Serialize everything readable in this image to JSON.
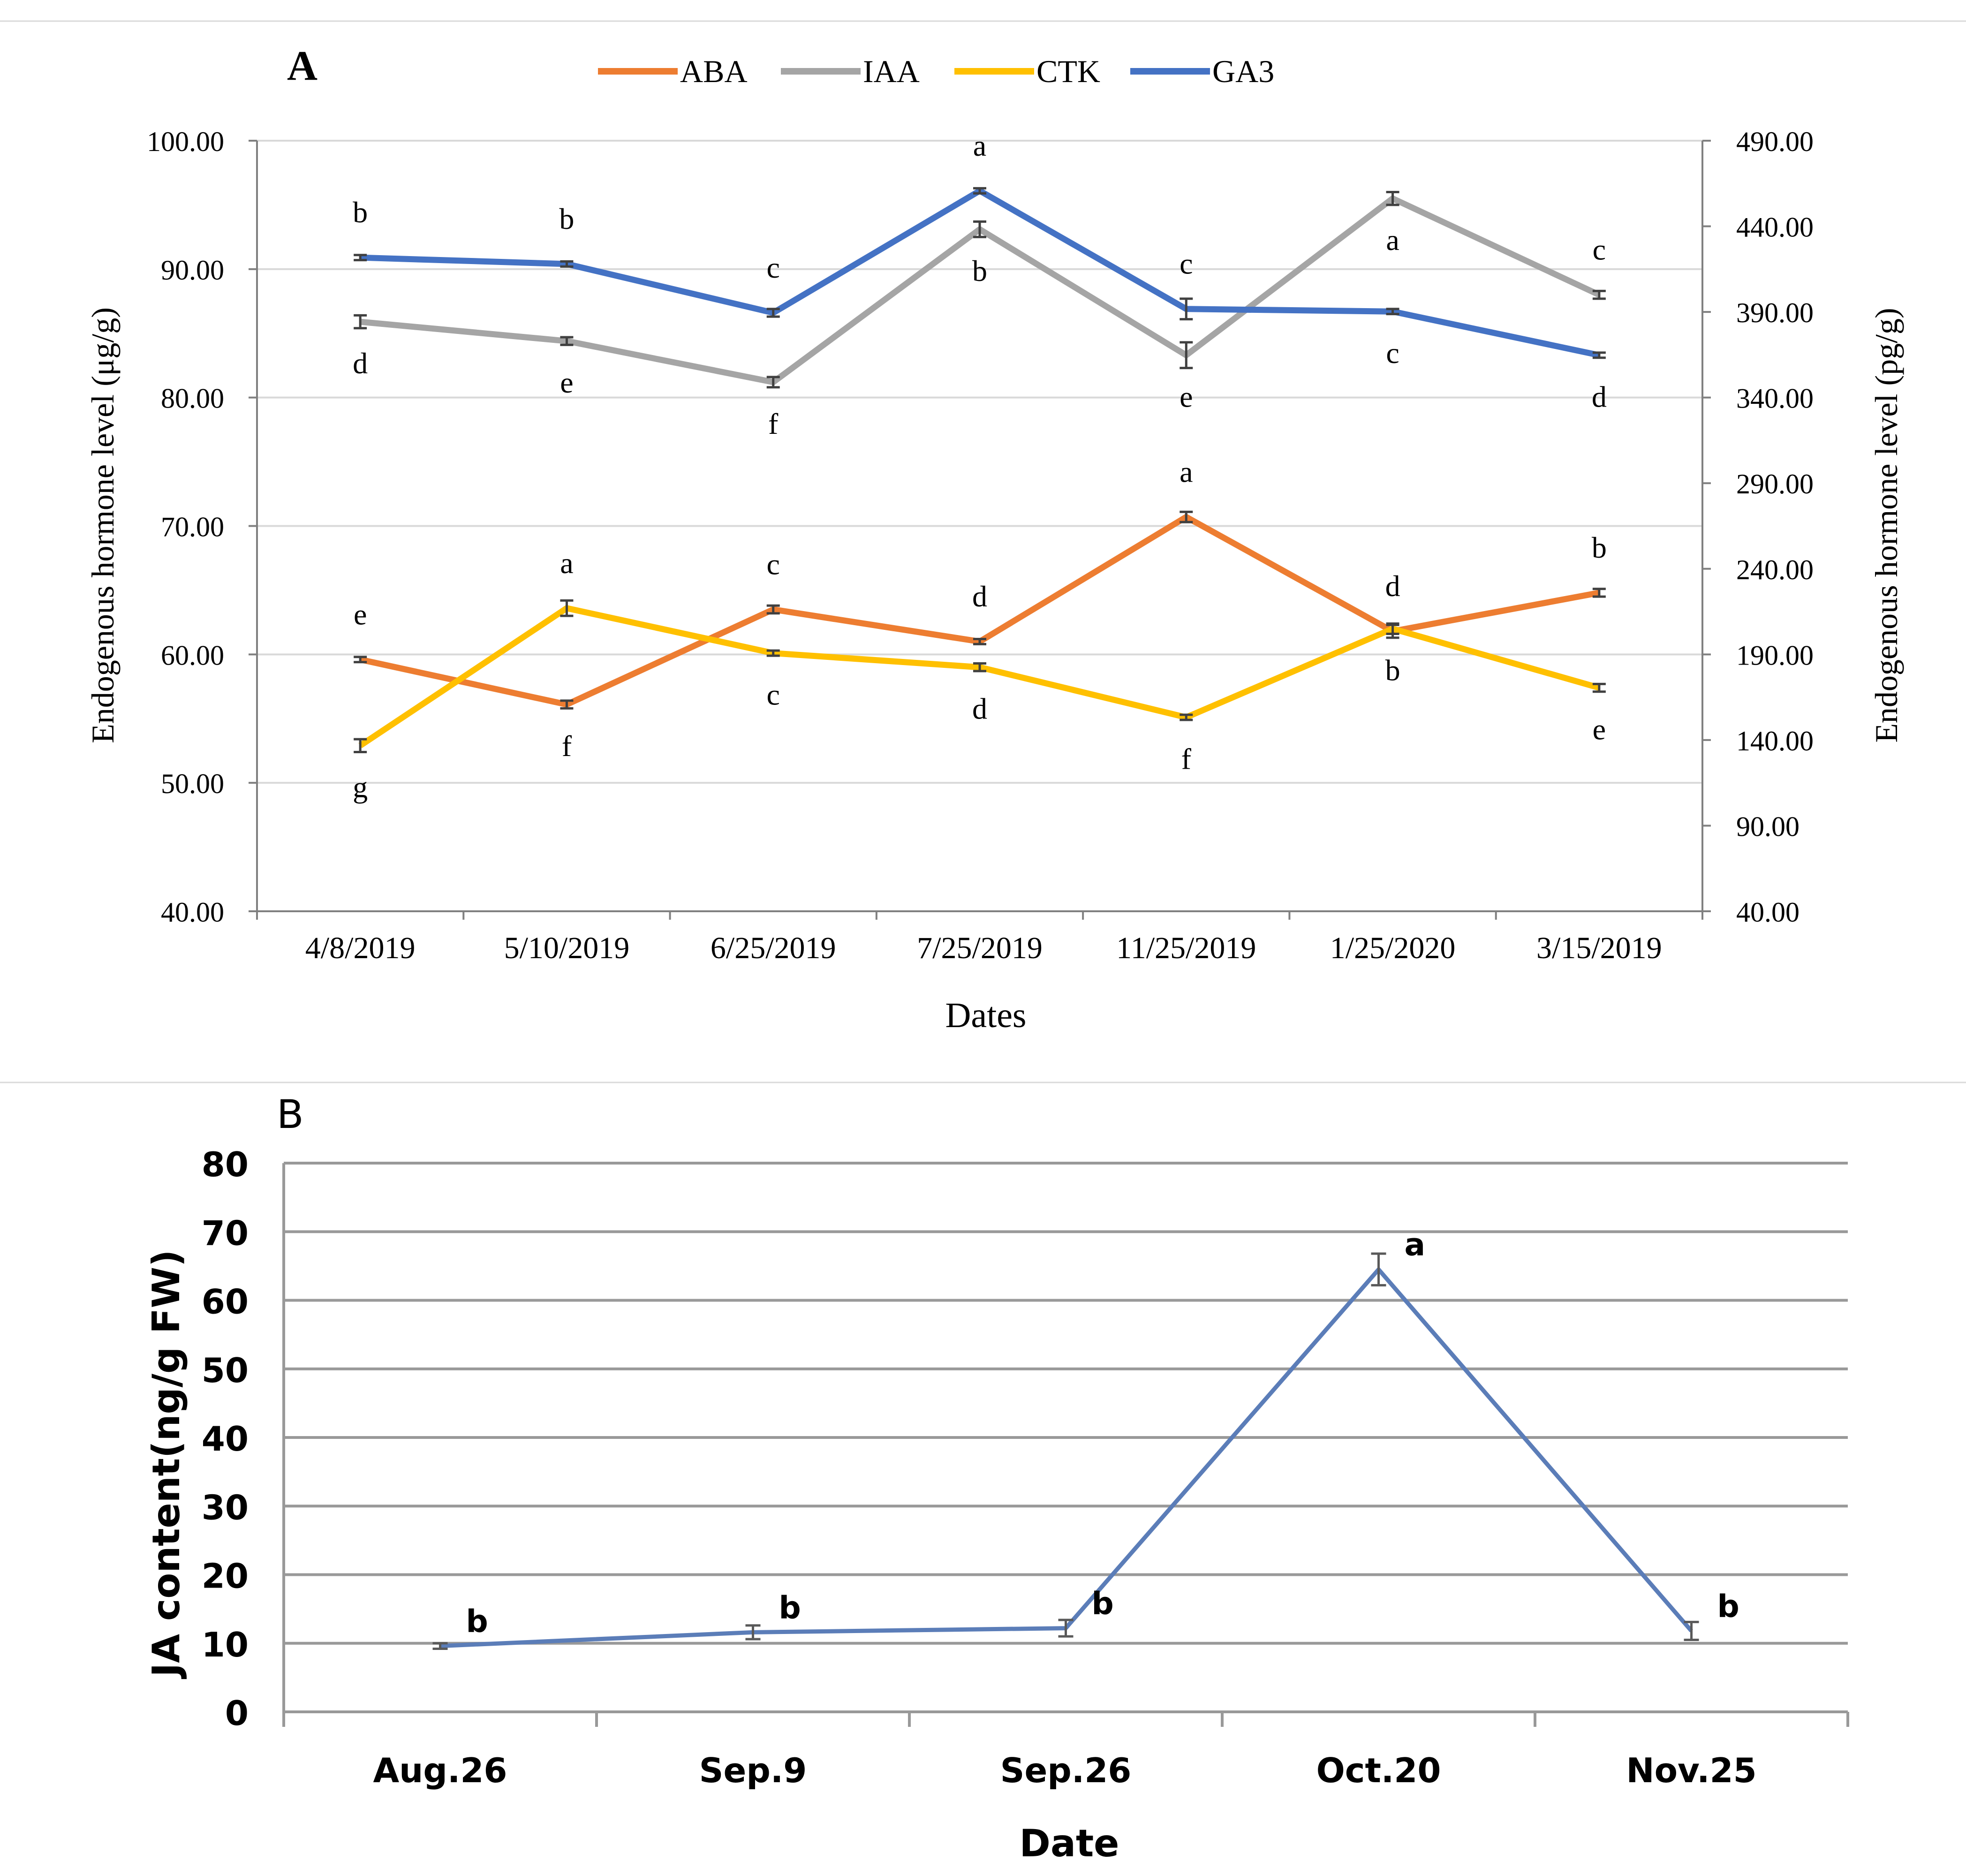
{
  "chart_data": [
    {
      "panel_label": "A",
      "type": "line",
      "xlabel": "Dates",
      "ylabel_left": "Endogenous hormone level (μg/g)",
      "ylabel_right": "Endogenous hormone level (pg/g)",
      "categories": [
        "4/8/2019",
        "5/10/2019",
        "6/25/2019",
        "7/25/2019",
        "11/25/2019",
        "1/25/2020",
        "3/15/2019"
      ],
      "ylim_left": [
        40,
        100
      ],
      "ylim_right": [
        40,
        490
      ],
      "yticks_left": [
        "40.00",
        "50.00",
        "60.00",
        "70.00",
        "80.00",
        "90.00",
        "100.00"
      ],
      "yticks_right": [
        "40.00",
        "90.00",
        "140.00",
        "190.00",
        "240.00",
        "290.00",
        "340.00",
        "390.00",
        "440.00",
        "490.00"
      ],
      "grid": true,
      "legend_position": "top",
      "series": [
        {
          "name": "ABA",
          "axis": "left",
          "color": "#ED7D31",
          "values": [
            59.6,
            56.1,
            63.5,
            61.0,
            70.7,
            61.8,
            64.8
          ],
          "errors": [
            0.2,
            0.3,
            0.3,
            0.2,
            0.4,
            0.5,
            0.3
          ],
          "letters": [
            "e",
            "f",
            "c",
            "d",
            "a",
            "d",
            "b"
          ],
          "letter_pos": [
            "above",
            "below",
            "above",
            "above",
            "above",
            "above",
            "above"
          ]
        },
        {
          "name": "IAA",
          "axis": "left",
          "color": "#A5A5A5",
          "values": [
            85.9,
            84.4,
            81.2,
            93.1,
            83.3,
            95.5,
            88.0
          ],
          "errors": [
            0.5,
            0.3,
            0.4,
            0.6,
            1.0,
            0.5,
            0.3
          ],
          "letters": [
            "d",
            "e",
            "f",
            "b",
            "e",
            "a",
            "c"
          ],
          "letter_pos": [
            "below",
            "below",
            "below",
            "below",
            "below",
            "below",
            "above"
          ]
        },
        {
          "name": "CTK",
          "axis": "left",
          "color": "#FFC000",
          "values": [
            52.9,
            63.6,
            60.1,
            59.0,
            55.1,
            62.0,
            57.4
          ],
          "errors": [
            0.5,
            0.6,
            0.2,
            0.3,
            0.2,
            0.4,
            0.3
          ],
          "letters": [
            "g",
            "a",
            "c",
            "d",
            "f",
            "b",
            "e"
          ],
          "letter_pos": [
            "below",
            "above",
            "below",
            "below",
            "below",
            "below",
            "below"
          ]
        },
        {
          "name": "GA3",
          "axis": "left",
          "color": "#4472C4",
          "values": [
            90.9,
            90.4,
            86.6,
            96.1,
            86.9,
            86.7,
            83.3
          ],
          "errors": [
            0.2,
            0.2,
            0.3,
            0.2,
            0.8,
            0.2,
            0.2
          ],
          "letters": [
            "b",
            "b",
            "c",
            "a",
            "c",
            "c",
            "d"
          ],
          "letter_pos": [
            "above",
            "above",
            "above",
            "above",
            "above",
            "below",
            "below"
          ]
        }
      ]
    },
    {
      "panel_label": "B",
      "type": "line",
      "xlabel": "Date",
      "ylabel": "JA content(ng/g FW)",
      "categories": [
        "Aug.26",
        "Sep.9",
        "Sep.26",
        "Oct.20",
        "Nov.25"
      ],
      "ylim": [
        0,
        80
      ],
      "yticks": [
        "0",
        "10",
        "20",
        "30",
        "40",
        "50",
        "60",
        "70",
        "80"
      ],
      "grid": true,
      "series": [
        {
          "name": "JA",
          "color": "#5B7DB8",
          "values": [
            9.6,
            11.6,
            12.2,
            64.5,
            11.8
          ],
          "errors": [
            0.4,
            1.0,
            1.2,
            2.3,
            1.3
          ],
          "letters": [
            "b",
            "b",
            "b",
            "a",
            "b"
          ]
        }
      ]
    }
  ]
}
